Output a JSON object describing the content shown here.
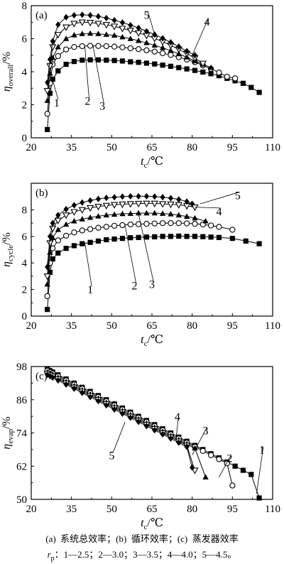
{
  "chart_data": [
    {
      "type": "line",
      "panel_label": "(a)",
      "xlabel": "t",
      "xlabel_sub": "c",
      "xlabel_unit": "/℃",
      "ylabel": "η",
      "ylabel_sub": "overall",
      "ylabel_unit": "/%",
      "xlim": [
        20,
        110
      ],
      "ylim": [
        0,
        8
      ],
      "xticks": [
        20,
        35,
        50,
        65,
        80,
        95,
        110
      ],
      "yticks": [
        0,
        2,
        4,
        6,
        8
      ],
      "curve_labels": [
        "1",
        "2",
        "3",
        "4",
        "5"
      ],
      "series": [
        {
          "name": "1",
          "marker": "square-filled",
          "x": [
            26,
            27,
            28,
            30,
            33,
            36,
            39,
            42,
            45,
            48,
            51,
            54,
            57,
            60,
            63,
            66,
            69,
            72,
            75,
            78,
            81,
            84,
            87,
            90,
            93,
            96,
            99,
            102,
            105
          ],
          "y": [
            0.5,
            2.7,
            3.55,
            4.05,
            4.45,
            4.62,
            4.7,
            4.72,
            4.72,
            4.7,
            4.68,
            4.65,
            4.6,
            4.57,
            4.52,
            4.47,
            4.4,
            4.33,
            4.25,
            4.17,
            4.08,
            3.98,
            3.88,
            3.76,
            3.6,
            3.45,
            3.3,
            3.05,
            2.75
          ]
        },
        {
          "name": "2",
          "marker": "circle-open",
          "x": [
            26,
            27,
            28,
            30,
            33,
            36,
            39,
            42,
            45,
            48,
            51,
            54,
            57,
            60,
            63,
            66,
            69,
            72,
            75,
            78,
            81,
            84,
            87,
            90,
            93,
            96
          ],
          "y": [
            1.45,
            3.3,
            4.45,
            4.95,
            5.35,
            5.5,
            5.55,
            5.57,
            5.56,
            5.55,
            5.52,
            5.48,
            5.42,
            5.37,
            5.3,
            5.22,
            5.12,
            5.02,
            4.88,
            4.74,
            4.58,
            4.38,
            4.18,
            3.95,
            3.7,
            3.6
          ]
        },
        {
          "name": "3",
          "marker": "triangle-filled",
          "x": [
            26,
            27,
            28,
            30,
            33,
            36,
            39,
            42,
            45,
            48,
            51,
            54,
            57,
            60,
            63,
            66,
            69,
            72,
            75,
            78,
            81,
            84,
            87
          ],
          "y": [
            2.25,
            3.9,
            4.85,
            5.5,
            6.0,
            6.22,
            6.3,
            6.32,
            6.3,
            6.25,
            6.2,
            6.1,
            6.0,
            5.88,
            5.75,
            5.6,
            5.45,
            5.28,
            5.08,
            4.88,
            4.65,
            4.45,
            4.25
          ]
        },
        {
          "name": "4",
          "marker": "triangle-down-open",
          "x": [
            26,
            27,
            28,
            30,
            33,
            36,
            39,
            42,
            45,
            48,
            51,
            54,
            57,
            60,
            63,
            66,
            69,
            72,
            75,
            78,
            81,
            84
          ],
          "y": [
            2.85,
            4.35,
            5.5,
            6.25,
            6.7,
            6.92,
            7.0,
            6.98,
            6.92,
            6.85,
            6.75,
            6.62,
            6.5,
            6.35,
            6.2,
            6.02,
            5.82,
            5.6,
            5.36,
            5.1,
            4.83,
            4.5
          ]
        },
        {
          "name": "5",
          "marker": "diamond-filled",
          "x": [
            26,
            27,
            28,
            30,
            33,
            36,
            39,
            42,
            45,
            48,
            51,
            54,
            57,
            60,
            63,
            66,
            69,
            72,
            75,
            78,
            81
          ],
          "y": [
            3.35,
            4.75,
            5.85,
            6.85,
            7.3,
            7.42,
            7.45,
            7.42,
            7.35,
            7.25,
            7.12,
            6.98,
            6.82,
            6.65,
            6.45,
            6.25,
            6.02,
            5.78,
            5.52,
            5.25,
            5.0
          ]
        }
      ]
    },
    {
      "type": "line",
      "panel_label": "(b)",
      "xlabel": "t",
      "xlabel_sub": "c",
      "xlabel_unit": "/℃",
      "ylabel": "η",
      "ylabel_sub": "cycle",
      "ylabel_unit": "/%",
      "xlim": [
        20,
        110
      ],
      "ylim": [
        0,
        10
      ],
      "xticks": [
        20,
        35,
        50,
        65,
        80,
        95,
        110
      ],
      "yticks": [
        0,
        2,
        4,
        6,
        8
      ],
      "curve_labels": [
        "1",
        "2",
        "3",
        "4",
        "5"
      ],
      "series": [
        {
          "name": "1",
          "marker": "square-filled",
          "x": [
            26,
            27,
            28,
            30,
            33,
            36,
            39,
            42,
            45,
            48,
            51,
            54,
            57,
            60,
            63,
            66,
            69,
            72,
            75,
            78,
            81,
            84,
            87,
            90,
            95,
            100,
            105
          ],
          "y": [
            0.5,
            3.3,
            4.3,
            4.75,
            5.1,
            5.3,
            5.45,
            5.55,
            5.65,
            5.75,
            5.8,
            5.85,
            5.9,
            5.92,
            5.95,
            5.97,
            6.0,
            6.0,
            6.02,
            6.0,
            6.0,
            5.98,
            5.95,
            5.92,
            5.85,
            5.65,
            5.45
          ]
        },
        {
          "name": "2",
          "marker": "circle-open",
          "x": [
            26,
            27,
            28,
            30,
            33,
            36,
            39,
            42,
            45,
            48,
            51,
            54,
            57,
            60,
            63,
            66,
            69,
            72,
            75,
            78,
            81,
            84,
            87,
            90,
            95
          ],
          "y": [
            1.5,
            4.0,
            5.1,
            5.7,
            6.05,
            6.3,
            6.45,
            6.55,
            6.65,
            6.72,
            6.8,
            6.85,
            6.9,
            6.92,
            6.95,
            6.97,
            7.0,
            7.0,
            7.0,
            6.98,
            6.95,
            6.9,
            6.82,
            6.72,
            6.5
          ]
        },
        {
          "name": "3",
          "marker": "triangle-filled",
          "x": [
            26,
            27,
            28,
            30,
            33,
            36,
            39,
            42,
            45,
            48,
            51,
            54,
            57,
            60,
            63,
            66,
            69,
            72,
            75,
            78,
            81,
            85
          ],
          "y": [
            2.4,
            4.8,
            5.9,
            6.5,
            6.9,
            7.15,
            7.3,
            7.42,
            7.52,
            7.6,
            7.65,
            7.7,
            7.72,
            7.75,
            7.75,
            7.75,
            7.72,
            7.68,
            7.6,
            7.5,
            7.38,
            7.15
          ]
        },
        {
          "name": "4",
          "marker": "triangle-down-open",
          "x": [
            26,
            27,
            28,
            30,
            33,
            36,
            39,
            42,
            45,
            48,
            51,
            54,
            57,
            60,
            63,
            66,
            69,
            72,
            75,
            78,
            81
          ],
          "y": [
            3.0,
            5.5,
            6.6,
            7.2,
            7.6,
            7.85,
            8.0,
            8.15,
            8.25,
            8.32,
            8.38,
            8.42,
            8.45,
            8.47,
            8.48,
            8.48,
            8.45,
            8.42,
            8.38,
            8.3,
            8.2
          ]
        },
        {
          "name": "5",
          "marker": "diamond-filled",
          "x": [
            26,
            27,
            28,
            30,
            33,
            36,
            39,
            42,
            45,
            48,
            51,
            54,
            57,
            60,
            63,
            66,
            69,
            72,
            75,
            78,
            80
          ],
          "y": [
            3.7,
            6.0,
            7.0,
            7.6,
            8.05,
            8.35,
            8.55,
            8.7,
            8.82,
            8.9,
            8.95,
            9.0,
            9.02,
            9.02,
            9.02,
            9.0,
            8.95,
            8.88,
            8.78,
            8.62,
            8.45
          ]
        }
      ]
    },
    {
      "type": "line",
      "panel_label": "(c)",
      "xlabel": "t",
      "xlabel_sub": "c",
      "xlabel_unit": "/℃",
      "ylabel": "η",
      "ylabel_sub": "evap",
      "ylabel_unit": "/%",
      "xlim": [
        20,
        110
      ],
      "ylim": [
        50,
        98
      ],
      "xticks": [
        20,
        35,
        50,
        65,
        80,
        95,
        110
      ],
      "yticks": [
        50,
        62,
        74,
        86,
        98
      ],
      "curve_labels": [
        "1",
        "2",
        "3",
        "4",
        "5"
      ],
      "series": [
        {
          "name": "1",
          "marker": "square-filled",
          "x": [
            26,
            27,
            28,
            30,
            33,
            36,
            39,
            42,
            45,
            48,
            51,
            54,
            57,
            60,
            63,
            66,
            69,
            72,
            75,
            78,
            81,
            84,
            87,
            90,
            93,
            96,
            99,
            102,
            105
          ],
          "y": [
            97.0,
            96.5,
            96.0,
            95.0,
            93.5,
            92.0,
            90.5,
            89.0,
            87.5,
            86.0,
            84.5,
            83.0,
            81.5,
            80.0,
            78.5,
            77.0,
            75.5,
            74.0,
            72.5,
            71.0,
            69.5,
            68.0,
            66.5,
            65.0,
            63.5,
            62.0,
            60.5,
            59.0,
            50.5
          ]
        },
        {
          "name": "2",
          "marker": "circle-open",
          "x": [
            26,
            27,
            28,
            30,
            33,
            36,
            39,
            42,
            45,
            48,
            51,
            54,
            57,
            60,
            63,
            66,
            69,
            72,
            75,
            78,
            81,
            84,
            87,
            90,
            93,
            95
          ],
          "y": [
            96.5,
            96.0,
            95.5,
            94.5,
            93.0,
            91.5,
            90.0,
            88.5,
            87.0,
            85.5,
            84.0,
            82.5,
            81.0,
            79.5,
            78.0,
            76.5,
            75.0,
            73.5,
            72.0,
            70.5,
            69.0,
            67.5,
            66.0,
            64.5,
            63.0,
            55.0
          ]
        },
        {
          "name": "3",
          "marker": "triangle-filled",
          "x": [
            26,
            27,
            28,
            30,
            33,
            36,
            39,
            42,
            45,
            48,
            51,
            54,
            57,
            60,
            63,
            66,
            69,
            72,
            75,
            78,
            81,
            85
          ],
          "y": [
            96.0,
            95.5,
            95.0,
            94.0,
            92.5,
            91.0,
            89.5,
            88.0,
            86.5,
            85.0,
            83.5,
            82.0,
            80.5,
            79.0,
            77.5,
            76.0,
            74.5,
            73.0,
            71.5,
            70.0,
            68.5,
            58.0
          ]
        },
        {
          "name": "4",
          "marker": "triangle-down-open",
          "x": [
            26,
            27,
            28,
            30,
            33,
            36,
            39,
            42,
            45,
            48,
            51,
            54,
            57,
            60,
            63,
            66,
            69,
            72,
            75,
            78,
            81
          ],
          "y": [
            95.5,
            95.0,
            94.5,
            93.5,
            92.0,
            90.5,
            89.0,
            87.5,
            86.0,
            84.5,
            83.0,
            81.5,
            80.0,
            78.5,
            77.0,
            75.5,
            74.0,
            72.5,
            71.0,
            69.5,
            60.5
          ]
        },
        {
          "name": "5",
          "marker": "diamond-filled",
          "x": [
            26,
            27,
            28,
            30,
            33,
            36,
            39,
            42,
            45,
            48,
            51,
            54,
            57,
            60,
            63,
            66,
            69,
            72,
            75,
            78,
            80
          ],
          "y": [
            95.0,
            94.5,
            94.0,
            93.0,
            91.5,
            90.0,
            88.5,
            87.0,
            85.5,
            84.0,
            82.5,
            81.0,
            79.5,
            78.0,
            76.5,
            75.0,
            73.5,
            72.0,
            70.5,
            69.0,
            61.5
          ]
        }
      ]
    }
  ],
  "caption": {
    "line1": "(a)  系统总效率；(b)  循环效率；(c)  蒸发器效率",
    "line2_symbol": "r",
    "line2_sub": "p",
    "line2_text": "：1—2.5；2—3.0；3—3.5；4—4.0；5—4.5。"
  }
}
